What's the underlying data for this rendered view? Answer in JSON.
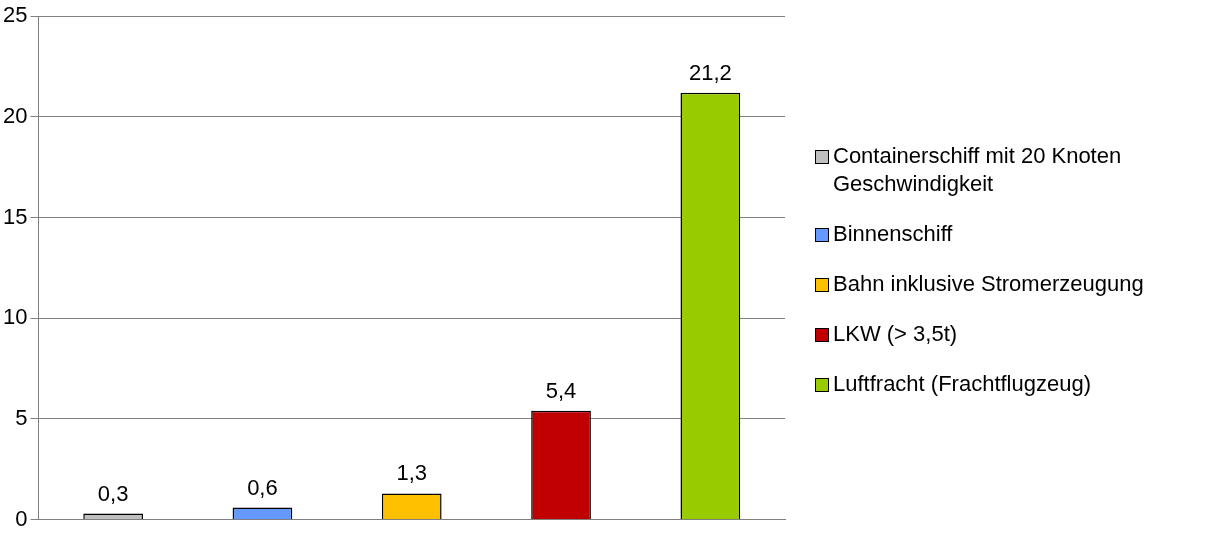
{
  "chart_data": {
    "type": "bar",
    "categories": [
      null,
      null,
      null,
      null,
      null
    ],
    "series": [
      {
        "name": "Containerschiff mit 20 Knoten Geschwindigkeit",
        "color": "#bfbfbf",
        "values": [
          0.3,
          null,
          null,
          null,
          null
        ],
        "value_labels": [
          "0,3",
          null,
          null,
          null,
          null
        ]
      },
      {
        "name": "Binnenschiff",
        "color": "#6699ff",
        "values": [
          null,
          0.6,
          null,
          null,
          null
        ],
        "value_labels": [
          null,
          "0,6",
          null,
          null,
          null
        ]
      },
      {
        "name": "Bahn inklusive Stromerzeugung",
        "color": "#ffc000",
        "values": [
          null,
          null,
          1.3,
          null,
          null
        ],
        "value_labels": [
          null,
          null,
          "1,3",
          null,
          null
        ]
      },
      {
        "name": "LKW (> 3,5t)",
        "color": "#c00000",
        "values": [
          null,
          null,
          null,
          5.4,
          null
        ],
        "value_labels": [
          null,
          null,
          null,
          "5,4",
          null
        ]
      },
      {
        "name": "Luftfracht (Frachtflugzeug)",
        "color": "#99cc00",
        "values": [
          null,
          null,
          null,
          null,
          21.2
        ],
        "value_labels": [
          null,
          null,
          null,
          null,
          "21,2"
        ]
      }
    ],
    "ylim": [
      0,
      25
    ],
    "yticks": [
      0,
      5,
      10,
      15,
      20,
      25
    ],
    "grid": "y",
    "legend": "right"
  }
}
